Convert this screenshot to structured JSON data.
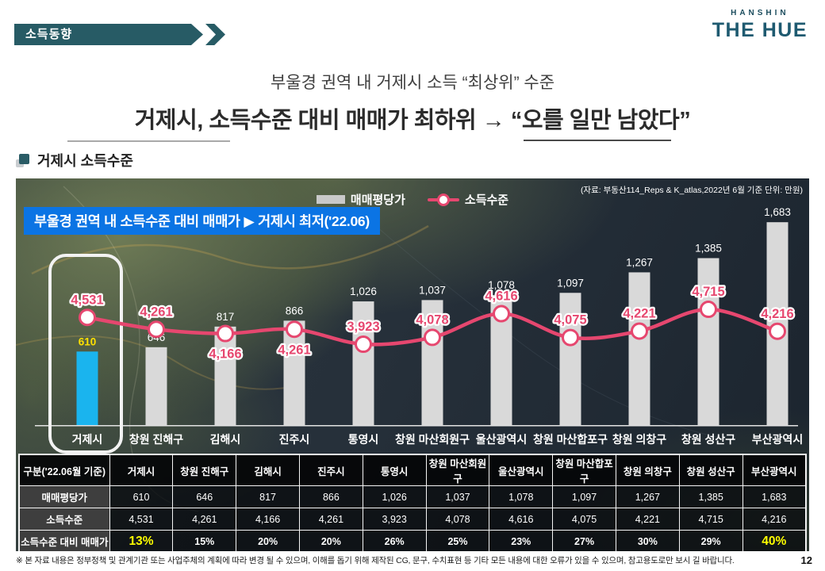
{
  "page": {
    "badge": "소득동향",
    "logo": {
      "top": "HANSHIN",
      "main": "THE HUE"
    },
    "title_sub": "부울경 권역 내 거제시 소득 “최상위” 수준",
    "title_main": "거제시, 소득수준 대비 매매가 최하위 → “오를 일만 남았다”",
    "section_title": "거제시 소득수준",
    "footer_note": "※ 본 자료 내용은 정부정책 및 관계기관 또는 사업주체의 계획에 따라 변경 될 수 있으며, 이해를 돕기 위해 제작된 CG, 문구, 수치표현 등 기타 모든 내용에 대한 오류가 있을 수 있으며, 참고용도로만 보시 길 바랍니다.",
    "page_number": "12"
  },
  "chart": {
    "banner": "부울경 권역 내 소득수준 대비 매매가 ▶ 거제시 최저('22.06)",
    "source": "(자료: 부동산114_Reps & K_atlas,2022년 6월 기준 단위: 만원)",
    "legend": [
      {
        "label": "매매평당가",
        "type": "bar"
      },
      {
        "label": "소득수준",
        "type": "line"
      }
    ]
  },
  "chart_data": {
    "type": "bar",
    "title": "거제시 소득수준",
    "unit": "만원",
    "categories": [
      "거제시",
      "창원 진해구",
      "김해시",
      "진주시",
      "통영시",
      "창원 마산회원구",
      "울산광역시",
      "창원 마산합포구",
      "창원 의창구",
      "창원 성산구",
      "부산광역시"
    ],
    "series": [
      {
        "name": "매매평당가",
        "type": "bar",
        "values": [
          610,
          646,
          817,
          866,
          1026,
          1037,
          1078,
          1097,
          1267,
          1385,
          1683
        ]
      },
      {
        "name": "소득수준",
        "type": "line",
        "values": [
          4531,
          4261,
          4166,
          4261,
          3923,
          4078,
          4616,
          4075,
          4221,
          4715,
          4216
        ],
        "label_positions": [
          "above",
          "above",
          "below",
          "below",
          "above",
          "above",
          "above",
          "above",
          "above",
          "above",
          "above"
        ]
      }
    ],
    "highlight_category": "거제시",
    "legend_position": "top",
    "grid": false
  },
  "table": {
    "corner_header": "구분('22.06월 기준)",
    "column_headers": [
      "거제시",
      "창원 진해구",
      "김해시",
      "진주시",
      "통영시",
      "창원 마산회원구",
      "울산광역시",
      "창원 마산합포구",
      "창원 의창구",
      "창원 성산구",
      "부산광역시"
    ],
    "rows": [
      {
        "label": "매매평당가",
        "values": [
          "610",
          "646",
          "817",
          "866",
          "1,026",
          "1,037",
          "1,078",
          "1,097",
          "1,267",
          "1,385",
          "1,683"
        ],
        "emphasis": false,
        "highlight": []
      },
      {
        "label": "소득수준",
        "values": [
          "4,531",
          "4,261",
          "4,166",
          "4,261",
          "3,923",
          "4,078",
          "4,616",
          "4,075",
          "4,221",
          "4,715",
          "4,216"
        ],
        "emphasis": false,
        "highlight": []
      },
      {
        "label": "소득수준 대비 매매가",
        "values": [
          "13%",
          "15%",
          "20%",
          "20%",
          "26%",
          "25%",
          "23%",
          "27%",
          "30%",
          "29%",
          "40%"
        ],
        "emphasis": true,
        "highlight": [
          0,
          10
        ]
      }
    ]
  },
  "colors": {
    "teal": "#275b65",
    "banner_blue": "#0b74e4",
    "bar_gray": "#d9d9d9",
    "bar_highlight_cyan": "#1ab4ee",
    "line_pink": "#e6476f",
    "value_yellow": "#ffe100",
    "table_highlight_yellow": "#ffff00",
    "baseline_white": "#e3e3e3"
  }
}
